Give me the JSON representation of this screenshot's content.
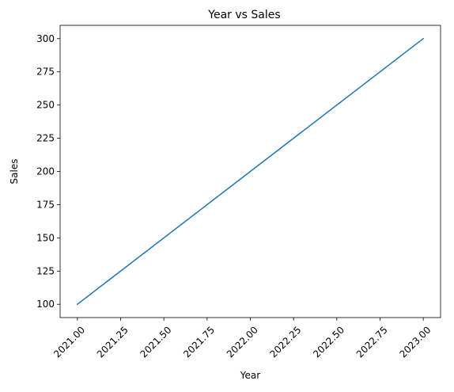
{
  "chart_data": {
    "type": "line",
    "title": "Year vs Sales",
    "xlabel": "Year",
    "ylabel": "Sales",
    "xlim": [
      2020.9,
      2023.1
    ],
    "ylim": [
      90,
      310
    ],
    "x_ticks": [
      2021.0,
      2021.25,
      2021.5,
      2021.75,
      2022.0,
      2022.25,
      2022.5,
      2022.75,
      2023.0
    ],
    "x_tick_labels": [
      "2021.00",
      "2021.25",
      "2021.50",
      "2021.75",
      "2022.00",
      "2022.25",
      "2022.50",
      "2022.75",
      "2023.00"
    ],
    "y_ticks": [
      100,
      125,
      150,
      175,
      200,
      225,
      250,
      275,
      300
    ],
    "y_tick_labels": [
      "100",
      "125",
      "150",
      "175",
      "200",
      "225",
      "250",
      "275",
      "300"
    ],
    "x_tick_rotation": 45,
    "grid": false,
    "series": [
      {
        "x": [
          2021,
          2022,
          2023
        ],
        "values": [
          100,
          200,
          300
        ],
        "color": "#1f77b4"
      }
    ]
  }
}
